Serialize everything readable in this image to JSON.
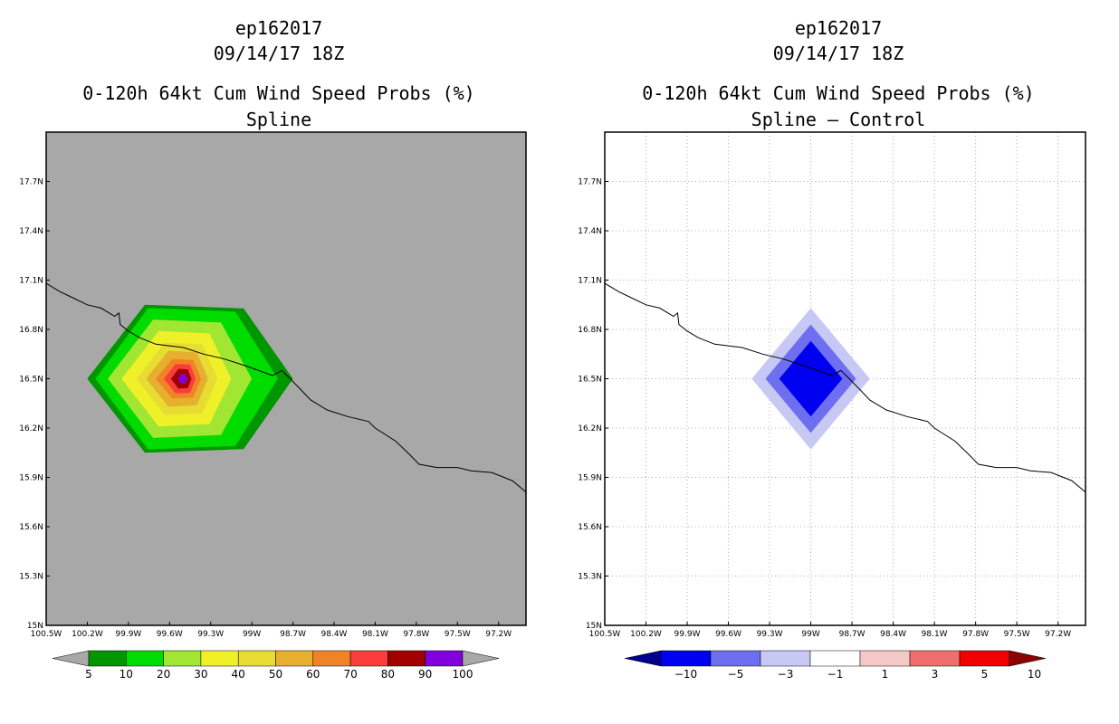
{
  "panels": [
    {
      "storm_id": "ep162017",
      "datetime": "09/14/17 18Z",
      "product": "0-120h 64kt Cum Wind Speed Probs (%)",
      "subtitle": "Spline"
    },
    {
      "storm_id": "ep162017",
      "datetime": "09/14/17 18Z",
      "product": "0-120h 64kt Cum Wind Speed Probs (%)",
      "subtitle": "Spline – Control"
    }
  ],
  "chart_data": [
    {
      "type": "heatmap",
      "title": "0-120h 64kt Cum Wind Speed Probs (%) - Spline",
      "xlim": [
        -100.5,
        -97.0
      ],
      "ylim": [
        15.0,
        18.0
      ],
      "x_ticks": [
        "100.5W",
        "100.2W",
        "99.9W",
        "99.6W",
        "99.3W",
        "99W",
        "98.7W",
        "98.4W",
        "98.1W",
        "97.8W",
        "97.5W",
        "97.2W"
      ],
      "y_ticks": [
        "15N",
        "15.3N",
        "15.6N",
        "15.9N",
        "16.2N",
        "16.5N",
        "16.8N",
        "17.1N",
        "17.4N",
        "17.7N"
      ],
      "grid": false,
      "background": "#a8a8a8",
      "center": {
        "lon": -99.5,
        "lat": 16.5
      },
      "levels": [
        5,
        10,
        20,
        30,
        40,
        50,
        60,
        70,
        80,
        90,
        100
      ],
      "colors": [
        "#009600",
        "#00dc00",
        "#a0e632",
        "#f0f028",
        "#e6dc32",
        "#e6af2d",
        "#f08228",
        "#fa3c3c",
        "#a00000",
        "#8200dc"
      ],
      "contours": [
        {
          "level": 5,
          "west": 0.7,
          "east": 0.8,
          "north": 0.45,
          "south": 0.45
        },
        {
          "level": 10,
          "west": 0.64,
          "east": 0.69,
          "north": 0.43,
          "south": 0.43
        },
        {
          "level": 20,
          "west": 0.55,
          "east": 0.5,
          "north": 0.36,
          "south": 0.36
        },
        {
          "level": 30,
          "west": 0.45,
          "east": 0.35,
          "north": 0.29,
          "south": 0.29
        },
        {
          "level": 40,
          "west": 0.34,
          "east": 0.25,
          "north": 0.22,
          "south": 0.22
        },
        {
          "level": 50,
          "west": 0.27,
          "east": 0.18,
          "north": 0.17,
          "south": 0.17
        },
        {
          "level": 60,
          "west": 0.2,
          "east": 0.13,
          "north": 0.12,
          "south": 0.12
        },
        {
          "level": 70,
          "west": 0.14,
          "east": 0.09,
          "north": 0.09,
          "south": 0.09
        },
        {
          "level": 80,
          "west": 0.09,
          "east": 0.06,
          "north": 0.06,
          "south": 0.06
        },
        {
          "level": 90,
          "west": 0.04,
          "east": 0.03,
          "north": 0.03,
          "south": 0.03
        }
      ],
      "colorbar": {
        "labels": [
          "5",
          "10",
          "20",
          "30",
          "40",
          "50",
          "60",
          "70",
          "80",
          "90",
          "100"
        ],
        "extend": "both",
        "extend_color": "#a8a8a8"
      }
    },
    {
      "type": "heatmap",
      "title": "0-120h 64kt Cum Wind Speed Probs (%) - Spline – Control",
      "xlim": [
        -100.5,
        -97.0
      ],
      "ylim": [
        15.0,
        18.0
      ],
      "x_ticks": [
        "100.5W",
        "100.2W",
        "99.9W",
        "99.6W",
        "99.3W",
        "99W",
        "98.7W",
        "98.4W",
        "98.1W",
        "97.8W",
        "97.5W",
        "97.2W"
      ],
      "y_ticks": [
        "15N",
        "15.3N",
        "15.6N",
        "15.9N",
        "16.2N",
        "16.5N",
        "16.8N",
        "17.1N",
        "17.4N",
        "17.7N"
      ],
      "grid": true,
      "background": "#ffffff",
      "center": {
        "lon": -99.0,
        "lat": 16.5
      },
      "levels": [
        -10,
        -5,
        -3,
        -1,
        1,
        3,
        5,
        10
      ],
      "colors": [
        "#00008c",
        "#0000f0",
        "#6e6ef0",
        "#c8c8f5",
        "#ffffff",
        "#f5c8c8",
        "#f06e6e",
        "#f00000",
        "#8c0000"
      ],
      "contours": [
        {
          "color": "#c8c8f5",
          "radius_lon": 0.43,
          "radius_lat": 0.43
        },
        {
          "color": "#6e6ef0",
          "radius_lon": 0.33,
          "radius_lat": 0.33
        },
        {
          "color": "#0000f0",
          "radius_lon": 0.23,
          "radius_lat": 0.23
        }
      ],
      "colorbar": {
        "labels": [
          "−10",
          "−5",
          "−3",
          "−1",
          "1",
          "3",
          "5",
          "10"
        ],
        "extend": "both",
        "min_color": "#00008c",
        "max_color": "#8c0000"
      }
    }
  ],
  "coastline": [
    [
      -100.5,
      17.08
    ],
    [
      -100.4,
      17.03
    ],
    [
      -100.3,
      16.99
    ],
    [
      -100.2,
      16.95
    ],
    [
      -100.1,
      16.93
    ],
    [
      -100.0,
      16.88
    ],
    [
      -99.97,
      16.9
    ],
    [
      -99.96,
      16.83
    ],
    [
      -99.9,
      16.79
    ],
    [
      -99.82,
      16.75
    ],
    [
      -99.7,
      16.71
    ],
    [
      -99.5,
      16.69
    ],
    [
      -99.35,
      16.65
    ],
    [
      -99.2,
      16.62
    ],
    [
      -99.05,
      16.58
    ],
    [
      -98.95,
      16.55
    ],
    [
      -98.85,
      16.52
    ],
    [
      -98.78,
      16.55
    ],
    [
      -98.72,
      16.5
    ],
    [
      -98.65,
      16.44
    ],
    [
      -98.57,
      16.37
    ],
    [
      -98.45,
      16.31
    ],
    [
      -98.3,
      16.27
    ],
    [
      -98.15,
      16.24
    ],
    [
      -98.1,
      16.2
    ],
    [
      -97.95,
      16.12
    ],
    [
      -97.85,
      16.04
    ],
    [
      -97.78,
      15.98
    ],
    [
      -97.65,
      15.96
    ],
    [
      -97.5,
      15.96
    ],
    [
      -97.4,
      15.94
    ],
    [
      -97.25,
      15.93
    ],
    [
      -97.1,
      15.88
    ],
    [
      -97.0,
      15.81
    ]
  ]
}
